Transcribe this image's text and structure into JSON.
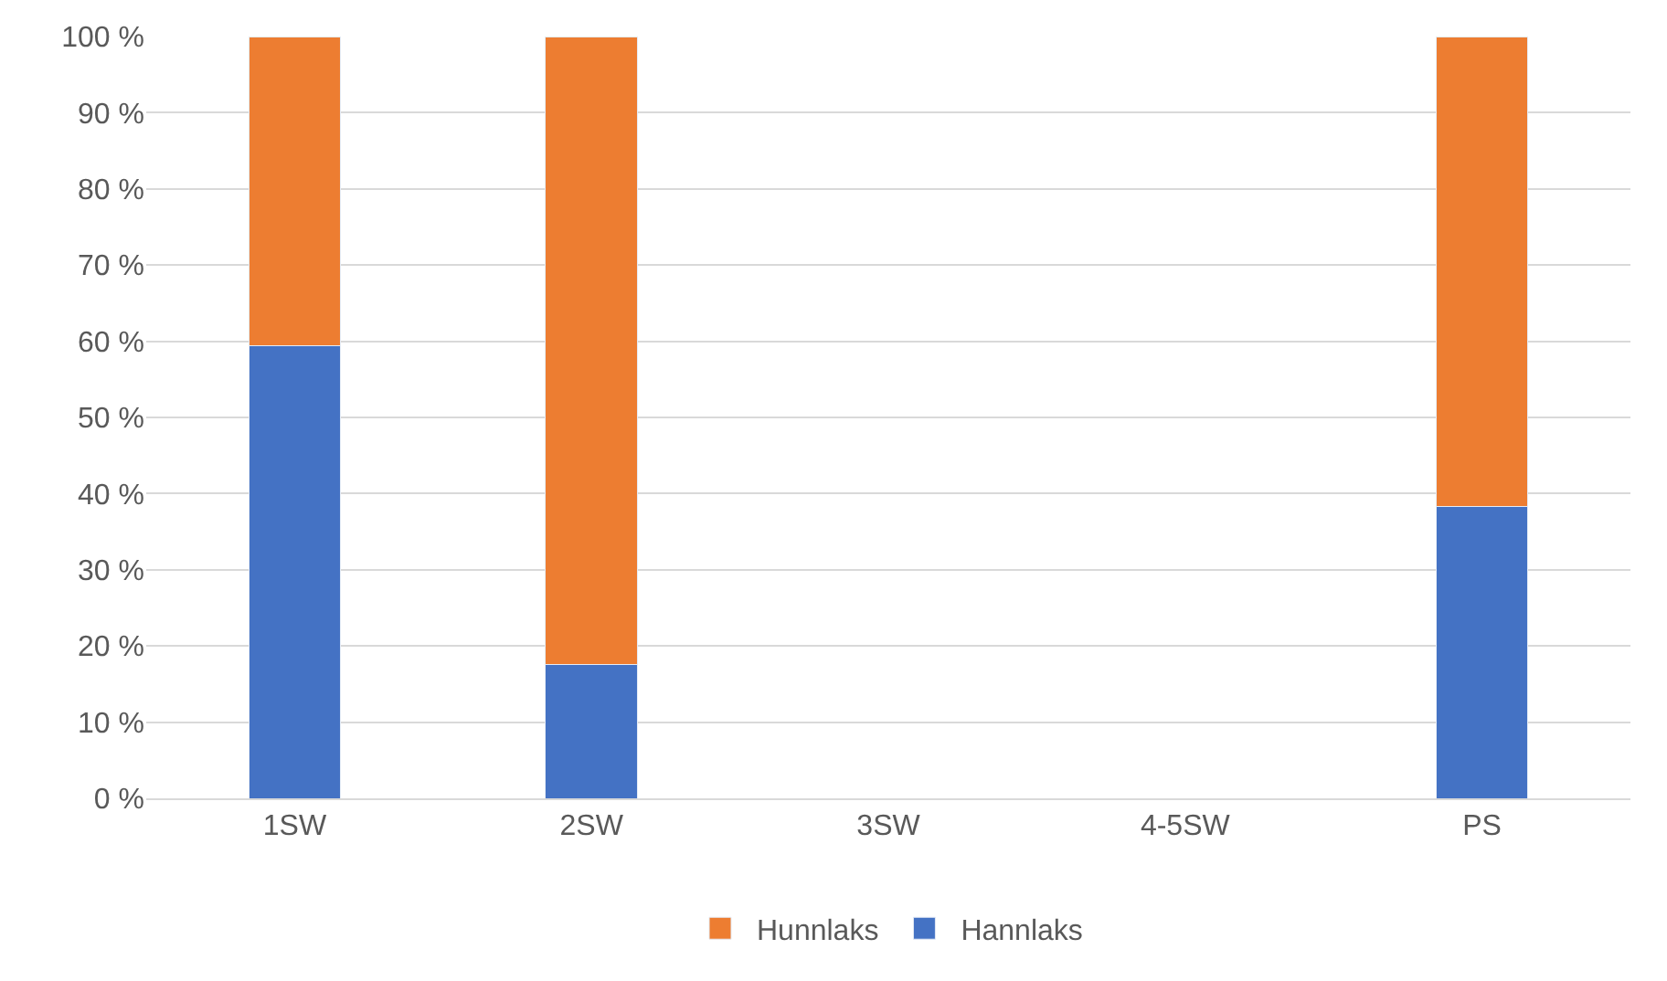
{
  "chart_data": {
    "type": "bar",
    "stacked": true,
    "categories": [
      "1SW",
      "2SW",
      "3SW",
      "4-5SW",
      "PS"
    ],
    "series": [
      {
        "name": "Hannlaks",
        "color": "#4472c4",
        "values": [
          59.4,
          17.6,
          null,
          null,
          38.3
        ]
      },
      {
        "name": "Hunnlaks",
        "color": "#ed7d31",
        "values": [
          40.6,
          82.4,
          null,
          null,
          61.7
        ]
      }
    ],
    "ylim": [
      0,
      100
    ],
    "yticks": [
      {
        "value": 0,
        "label": "0 %"
      },
      {
        "value": 10,
        "label": "10 %"
      },
      {
        "value": 20,
        "label": "20 %"
      },
      {
        "value": 30,
        "label": "30 %"
      },
      {
        "value": 40,
        "label": "40 %"
      },
      {
        "value": 50,
        "label": "50 %"
      },
      {
        "value": 60,
        "label": "60 %"
      },
      {
        "value": 70,
        "label": "70 %"
      },
      {
        "value": 80,
        "label": "80 %"
      },
      {
        "value": 90,
        "label": "90 %"
      },
      {
        "value": 100,
        "label": "100 %"
      }
    ],
    "grid": "y",
    "legend": "bottom"
  }
}
